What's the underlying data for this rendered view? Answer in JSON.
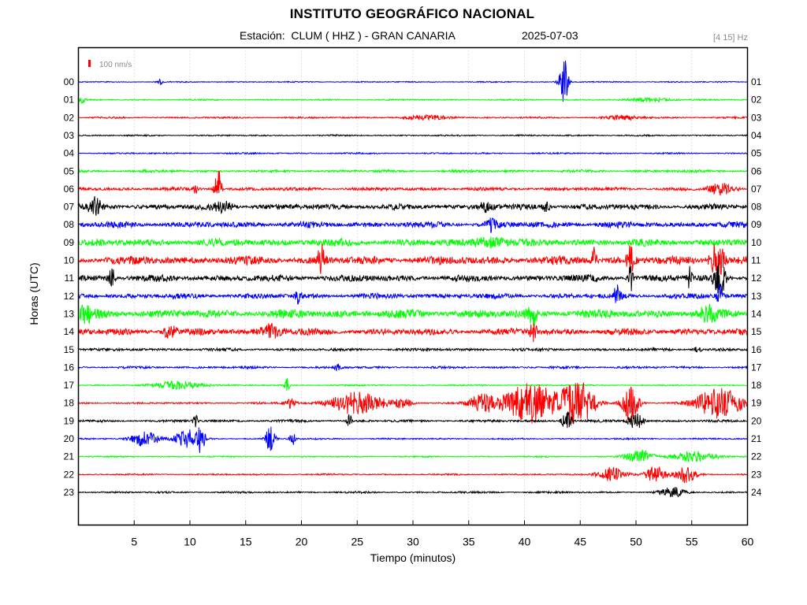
{
  "header": {
    "title": "INSTITUTO GEOGRÁFICO NACIONAL",
    "station": "Estación:  CLUM ( HHZ ) - GRAN CANARIA",
    "date": "2025-07-03",
    "filter": "[4 15] Hz"
  },
  "chart_data": {
    "type": "line",
    "title": "INSTITUTO GEOGRÁFICO NACIONAL",
    "xlabel": "Tiempo (minutos)",
    "ylabel": "Horas (UTC)",
    "xlim": [
      0,
      60
    ],
    "x_ticks": [
      "5",
      "10",
      "15",
      "20",
      "25",
      "30",
      "35",
      "40",
      "45",
      "50",
      "55",
      "60"
    ],
    "left_hour_labels": [
      "00",
      "01",
      "02",
      "03",
      "04",
      "05",
      "06",
      "07",
      "08",
      "09",
      "10",
      "11",
      "12",
      "13",
      "14",
      "15",
      "16",
      "17",
      "18",
      "19",
      "20",
      "21",
      "22",
      "23"
    ],
    "right_hour_labels": [
      "01",
      "02",
      "03",
      "04",
      "05",
      "06",
      "07",
      "08",
      "09",
      "10",
      "11",
      "12",
      "13",
      "14",
      "15",
      "16",
      "17",
      "18",
      "19",
      "20",
      "21",
      "22",
      "23",
      "24"
    ],
    "scale_label": "100 nm/s",
    "colors": [
      "#0000ff",
      "#00ff00",
      "#ff0000",
      "#000000"
    ],
    "grid": true,
    "series": [
      {
        "hour": "00",
        "noise": 0.6,
        "events": [
          [
            7.3,
            4,
            0.2
          ],
          [
            43.5,
            32,
            0.4
          ]
        ]
      },
      {
        "hour": "01",
        "noise": 0.7,
        "events": [
          [
            0.3,
            4,
            0.3
          ],
          [
            51.5,
            2.5,
            2
          ]
        ]
      },
      {
        "hour": "02",
        "noise": 0.9,
        "events": [
          [
            31.5,
            2.5,
            2
          ],
          [
            49,
            2.5,
            1.5
          ]
        ]
      },
      {
        "hour": "03",
        "noise": 0.8,
        "events": []
      },
      {
        "hour": "04",
        "noise": 0.8,
        "events": []
      },
      {
        "hour": "05",
        "noise": 1.4,
        "events": []
      },
      {
        "hour": "06",
        "noise": 1.8,
        "events": [
          [
            10.5,
            7,
            0.2
          ],
          [
            12.5,
            28,
            0.3
          ],
          [
            57.5,
            7,
            1
          ]
        ]
      },
      {
        "hour": "07",
        "noise": 3.0,
        "events": [
          [
            1.5,
            11,
            0.5
          ],
          [
            13,
            6,
            0.8
          ],
          [
            36.5,
            6,
            0.6
          ],
          [
            42,
            7,
            0.3
          ]
        ]
      },
      {
        "hour": "08",
        "noise": 3.2,
        "events": [
          [
            37,
            9,
            0.4
          ]
        ]
      },
      {
        "hour": "09",
        "noise": 3.8,
        "events": [
          [
            37,
            6,
            1.5
          ]
        ]
      },
      {
        "hour": "10",
        "noise": 4.5,
        "events": [
          [
            21.8,
            22,
            0.3
          ],
          [
            46.3,
            24,
            0.2
          ],
          [
            49.5,
            18,
            0.3
          ],
          [
            57.3,
            26,
            0.6
          ]
        ]
      },
      {
        "hour": "11",
        "noise": 3.5,
        "events": [
          [
            3,
            11,
            0.3
          ],
          [
            49.5,
            20,
            0.2
          ],
          [
            54.8,
            14,
            0.2
          ],
          [
            57.5,
            22,
            0.5
          ]
        ]
      },
      {
        "hour": "12",
        "noise": 2.8,
        "events": [
          [
            19.7,
            8,
            0.3
          ],
          [
            48.3,
            12,
            0.3
          ],
          [
            57.5,
            16,
            0.3
          ]
        ]
      },
      {
        "hour": "13",
        "noise": 4.5,
        "events": [
          [
            0.4,
            10,
            0.8
          ],
          [
            40.7,
            14,
            0.4
          ],
          [
            56.5,
            8,
            0.8
          ]
        ]
      },
      {
        "hour": "14",
        "noise": 3.5,
        "events": [
          [
            8.2,
            8,
            0.6
          ],
          [
            17.3,
            9,
            0.9
          ],
          [
            40.8,
            12,
            0.3
          ]
        ]
      },
      {
        "hour": "15",
        "noise": 1.5,
        "events": [
          [
            55.5,
            5,
            0.3
          ]
        ]
      },
      {
        "hour": "16",
        "noise": 1.2,
        "events": [
          [
            23.2,
            4,
            0.3
          ]
        ]
      },
      {
        "hour": "17",
        "noise": 0.7,
        "events": [
          [
            9,
            5,
            2.2
          ],
          [
            18.7,
            9,
            0.2
          ]
        ]
      },
      {
        "hour": "18",
        "noise": 1.0,
        "events": [
          [
            25,
            15,
            2.3
          ],
          [
            29.2,
            6,
            0.7
          ],
          [
            36.3,
            11,
            1.3
          ],
          [
            40.6,
            26,
            2.3
          ],
          [
            44.8,
            30,
            1.4
          ],
          [
            49.5,
            24,
            0.7
          ],
          [
            57.5,
            20,
            2
          ],
          [
            19,
            7,
            0.5
          ]
        ]
      },
      {
        "hour": "19",
        "noise": 1.3,
        "events": [
          [
            10.5,
            9,
            0.2
          ],
          [
            24.3,
            9,
            0.2
          ],
          [
            43.8,
            14,
            0.4
          ],
          [
            50,
            10,
            0.7
          ]
        ]
      },
      {
        "hour": "20",
        "noise": 0.8,
        "events": [
          [
            6,
            10,
            1.2
          ],
          [
            9.7,
            12,
            1.1
          ],
          [
            11,
            18,
            0.3
          ],
          [
            17.2,
            16,
            0.4
          ],
          [
            19.2,
            8,
            0.3
          ]
        ]
      },
      {
        "hour": "21",
        "noise": 0.7,
        "events": [
          [
            50.3,
            9,
            1.2
          ],
          [
            55.2,
            7,
            1.8
          ]
        ]
      },
      {
        "hour": "22",
        "noise": 0.8,
        "events": [
          [
            47.8,
            9,
            1.2
          ],
          [
            51.8,
            11,
            0.9
          ],
          [
            54.5,
            11,
            0.9
          ]
        ]
      },
      {
        "hour": "23",
        "noise": 1.0,
        "events": [
          [
            53.3,
            6,
            1
          ]
        ]
      }
    ]
  }
}
